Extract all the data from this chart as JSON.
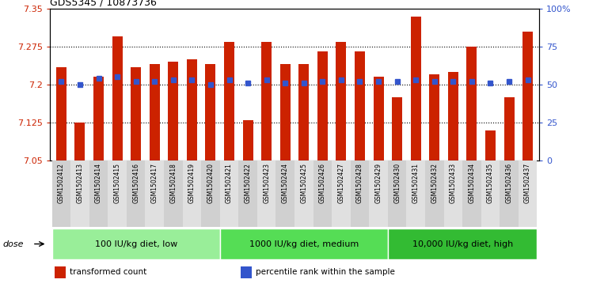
{
  "title": "GDS5345 / 10873736",
  "samples": [
    "GSM1502412",
    "GSM1502413",
    "GSM1502414",
    "GSM1502415",
    "GSM1502416",
    "GSM1502417",
    "GSM1502418",
    "GSM1502419",
    "GSM1502420",
    "GSM1502421",
    "GSM1502422",
    "GSM1502423",
    "GSM1502424",
    "GSM1502425",
    "GSM1502426",
    "GSM1502427",
    "GSM1502428",
    "GSM1502429",
    "GSM1502430",
    "GSM1502431",
    "GSM1502432",
    "GSM1502433",
    "GSM1502434",
    "GSM1502435",
    "GSM1502436",
    "GSM1502437"
  ],
  "bar_values": [
    7.235,
    7.125,
    7.215,
    7.295,
    7.235,
    7.24,
    7.245,
    7.25,
    7.24,
    7.285,
    7.13,
    7.285,
    7.24,
    7.24,
    7.265,
    7.285,
    7.265,
    7.215,
    7.175,
    7.335,
    7.22,
    7.225,
    7.275,
    7.11,
    7.175,
    7.305
  ],
  "percentile_values": [
    52,
    50,
    54,
    55,
    52,
    52,
    53,
    53,
    50,
    53,
    51,
    53,
    51,
    51,
    52,
    53,
    52,
    52,
    52,
    53,
    52,
    52,
    52,
    51,
    52,
    53
  ],
  "ylim_left": [
    7.05,
    7.35
  ],
  "ylim_right": [
    0,
    100
  ],
  "yticks_left": [
    7.05,
    7.125,
    7.2,
    7.275,
    7.35
  ],
  "ytick_labels_left": [
    "7.05",
    "7.125",
    "7.2",
    "7.275",
    "7.35"
  ],
  "yticks_right": [
    0,
    25,
    50,
    75,
    100
  ],
  "ytick_labels_right": [
    "0",
    "25",
    "50",
    "75",
    "100%"
  ],
  "grid_lines": [
    7.125,
    7.2,
    7.275
  ],
  "bar_color": "#CC2200",
  "percentile_color": "#3355CC",
  "groups": [
    {
      "label": "100 IU/kg diet, low",
      "start": 0,
      "end": 9,
      "color": "#99EE99"
    },
    {
      "label": "1000 IU/kg diet, medium",
      "start": 9,
      "end": 18,
      "color": "#55DD55"
    },
    {
      "label": "10,000 IU/kg diet, high",
      "start": 18,
      "end": 26,
      "color": "#33BB33"
    }
  ],
  "dose_label": "dose",
  "legend_items": [
    {
      "color": "#CC2200",
      "label": "transformed count"
    },
    {
      "color": "#3355CC",
      "label": "percentile rank within the sample"
    }
  ],
  "base_value": 7.05,
  "bar_width": 0.55
}
